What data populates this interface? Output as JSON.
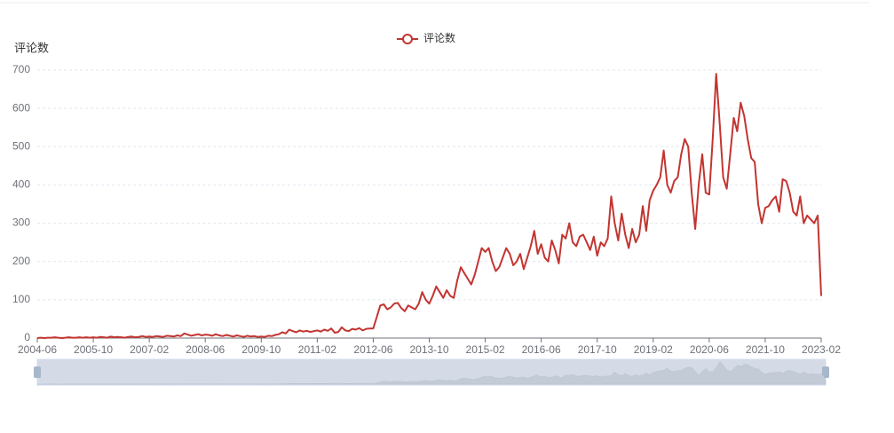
{
  "chart_data": {
    "type": "line",
    "y_label": "评论数",
    "categories": [
      "2004-06",
      null,
      null,
      null,
      null,
      null,
      null,
      null,
      null,
      null,
      null,
      null,
      null,
      null,
      null,
      null,
      "2005-10",
      null,
      null,
      null,
      null,
      null,
      null,
      null,
      null,
      null,
      null,
      null,
      null,
      null,
      null,
      null,
      "2007-02",
      null,
      null,
      null,
      null,
      null,
      null,
      null,
      null,
      null,
      null,
      null,
      null,
      null,
      null,
      null,
      "2008-06",
      null,
      null,
      null,
      null,
      null,
      null,
      null,
      null,
      null,
      null,
      null,
      null,
      null,
      null,
      null,
      "2009-10",
      null,
      null,
      null,
      null,
      null,
      null,
      null,
      null,
      null,
      null,
      null,
      null,
      null,
      null,
      null,
      "2011-02",
      null,
      null,
      null,
      null,
      null,
      null,
      null,
      null,
      null,
      null,
      null,
      null,
      null,
      null,
      null,
      "2012-06",
      null,
      null,
      null,
      null,
      null,
      null,
      null,
      null,
      null,
      null,
      null,
      null,
      null,
      null,
      null,
      "2013-10",
      null,
      null,
      null,
      null,
      null,
      null,
      null,
      null,
      null,
      null,
      null,
      null,
      null,
      null,
      null,
      "2015-02",
      null,
      null,
      null,
      null,
      null,
      null,
      null,
      null,
      null,
      null,
      null,
      null,
      null,
      null,
      null,
      "2016-06",
      null,
      null,
      null,
      null,
      null,
      null,
      null,
      null,
      null,
      null,
      null,
      null,
      null,
      null,
      null,
      "2017-10",
      null,
      null,
      null,
      null,
      null,
      null,
      null,
      null,
      null,
      null,
      null,
      null,
      null,
      null,
      null,
      "2019-02",
      null,
      null,
      null,
      null,
      null,
      null,
      null,
      null,
      null,
      null,
      null,
      null,
      null,
      null,
      null,
      "2020-06",
      null,
      null,
      null,
      null,
      null,
      null,
      null,
      null,
      null,
      null,
      null,
      null,
      null,
      null,
      null,
      "2021-10",
      null,
      null,
      null,
      null,
      null,
      null,
      null,
      null,
      null,
      null,
      null,
      null,
      null,
      null,
      null,
      "2023-02"
    ],
    "series": [
      {
        "name": "评论数",
        "color": "#c23531",
        "values": [
          0,
          1,
          0,
          1,
          1,
          2,
          1,
          0,
          1,
          2,
          1,
          1,
          2,
          1,
          2,
          1,
          2,
          1,
          3,
          2,
          1,
          4,
          2,
          3,
          2,
          1,
          3,
          4,
          2,
          3,
          5,
          3,
          4,
          3,
          5,
          4,
          3,
          6,
          5,
          4,
          7,
          5,
          12,
          9,
          6,
          8,
          10,
          7,
          9,
          8,
          6,
          10,
          7,
          5,
          8,
          6,
          4,
          7,
          5,
          3,
          6,
          4,
          5,
          3,
          4,
          3,
          6,
          5,
          8,
          10,
          15,
          12,
          22,
          18,
          15,
          20,
          17,
          19,
          16,
          18,
          20,
          17,
          22,
          19,
          25,
          14,
          16,
          28,
          20,
          18,
          24,
          22,
          26,
          20,
          24,
          25,
          25,
          55,
          85,
          88,
          75,
          80,
          90,
          92,
          78,
          70,
          85,
          80,
          75,
          90,
          120,
          100,
          90,
          110,
          135,
          120,
          105,
          125,
          110,
          105,
          150,
          185,
          170,
          155,
          140,
          165,
          200,
          235,
          225,
          235,
          200,
          175,
          185,
          210,
          235,
          220,
          190,
          200,
          220,
          180,
          210,
          240,
          280,
          220,
          245,
          210,
          200,
          255,
          230,
          195,
          270,
          260,
          300,
          250,
          240,
          265,
          270,
          250,
          230,
          265,
          215,
          250,
          240,
          260,
          370,
          300,
          255,
          325,
          270,
          235,
          285,
          250,
          270,
          345,
          280,
          360,
          385,
          400,
          420,
          490,
          400,
          380,
          410,
          420,
          480,
          520,
          500,
          380,
          285,
          400,
          480,
          380,
          375,
          520,
          690,
          560,
          420,
          390,
          480,
          575,
          540,
          615,
          580,
          520,
          470,
          460,
          350,
          300,
          340,
          345,
          360,
          370,
          330,
          415,
          410,
          380,
          330,
          320,
          370,
          300,
          320,
          310,
          300,
          320,
          110
        ]
      }
    ],
    "ylim": [
      0,
      700
    ],
    "yticks": [
      0,
      100,
      200,
      300,
      400,
      500,
      600,
      700
    ],
    "grid": true
  }
}
